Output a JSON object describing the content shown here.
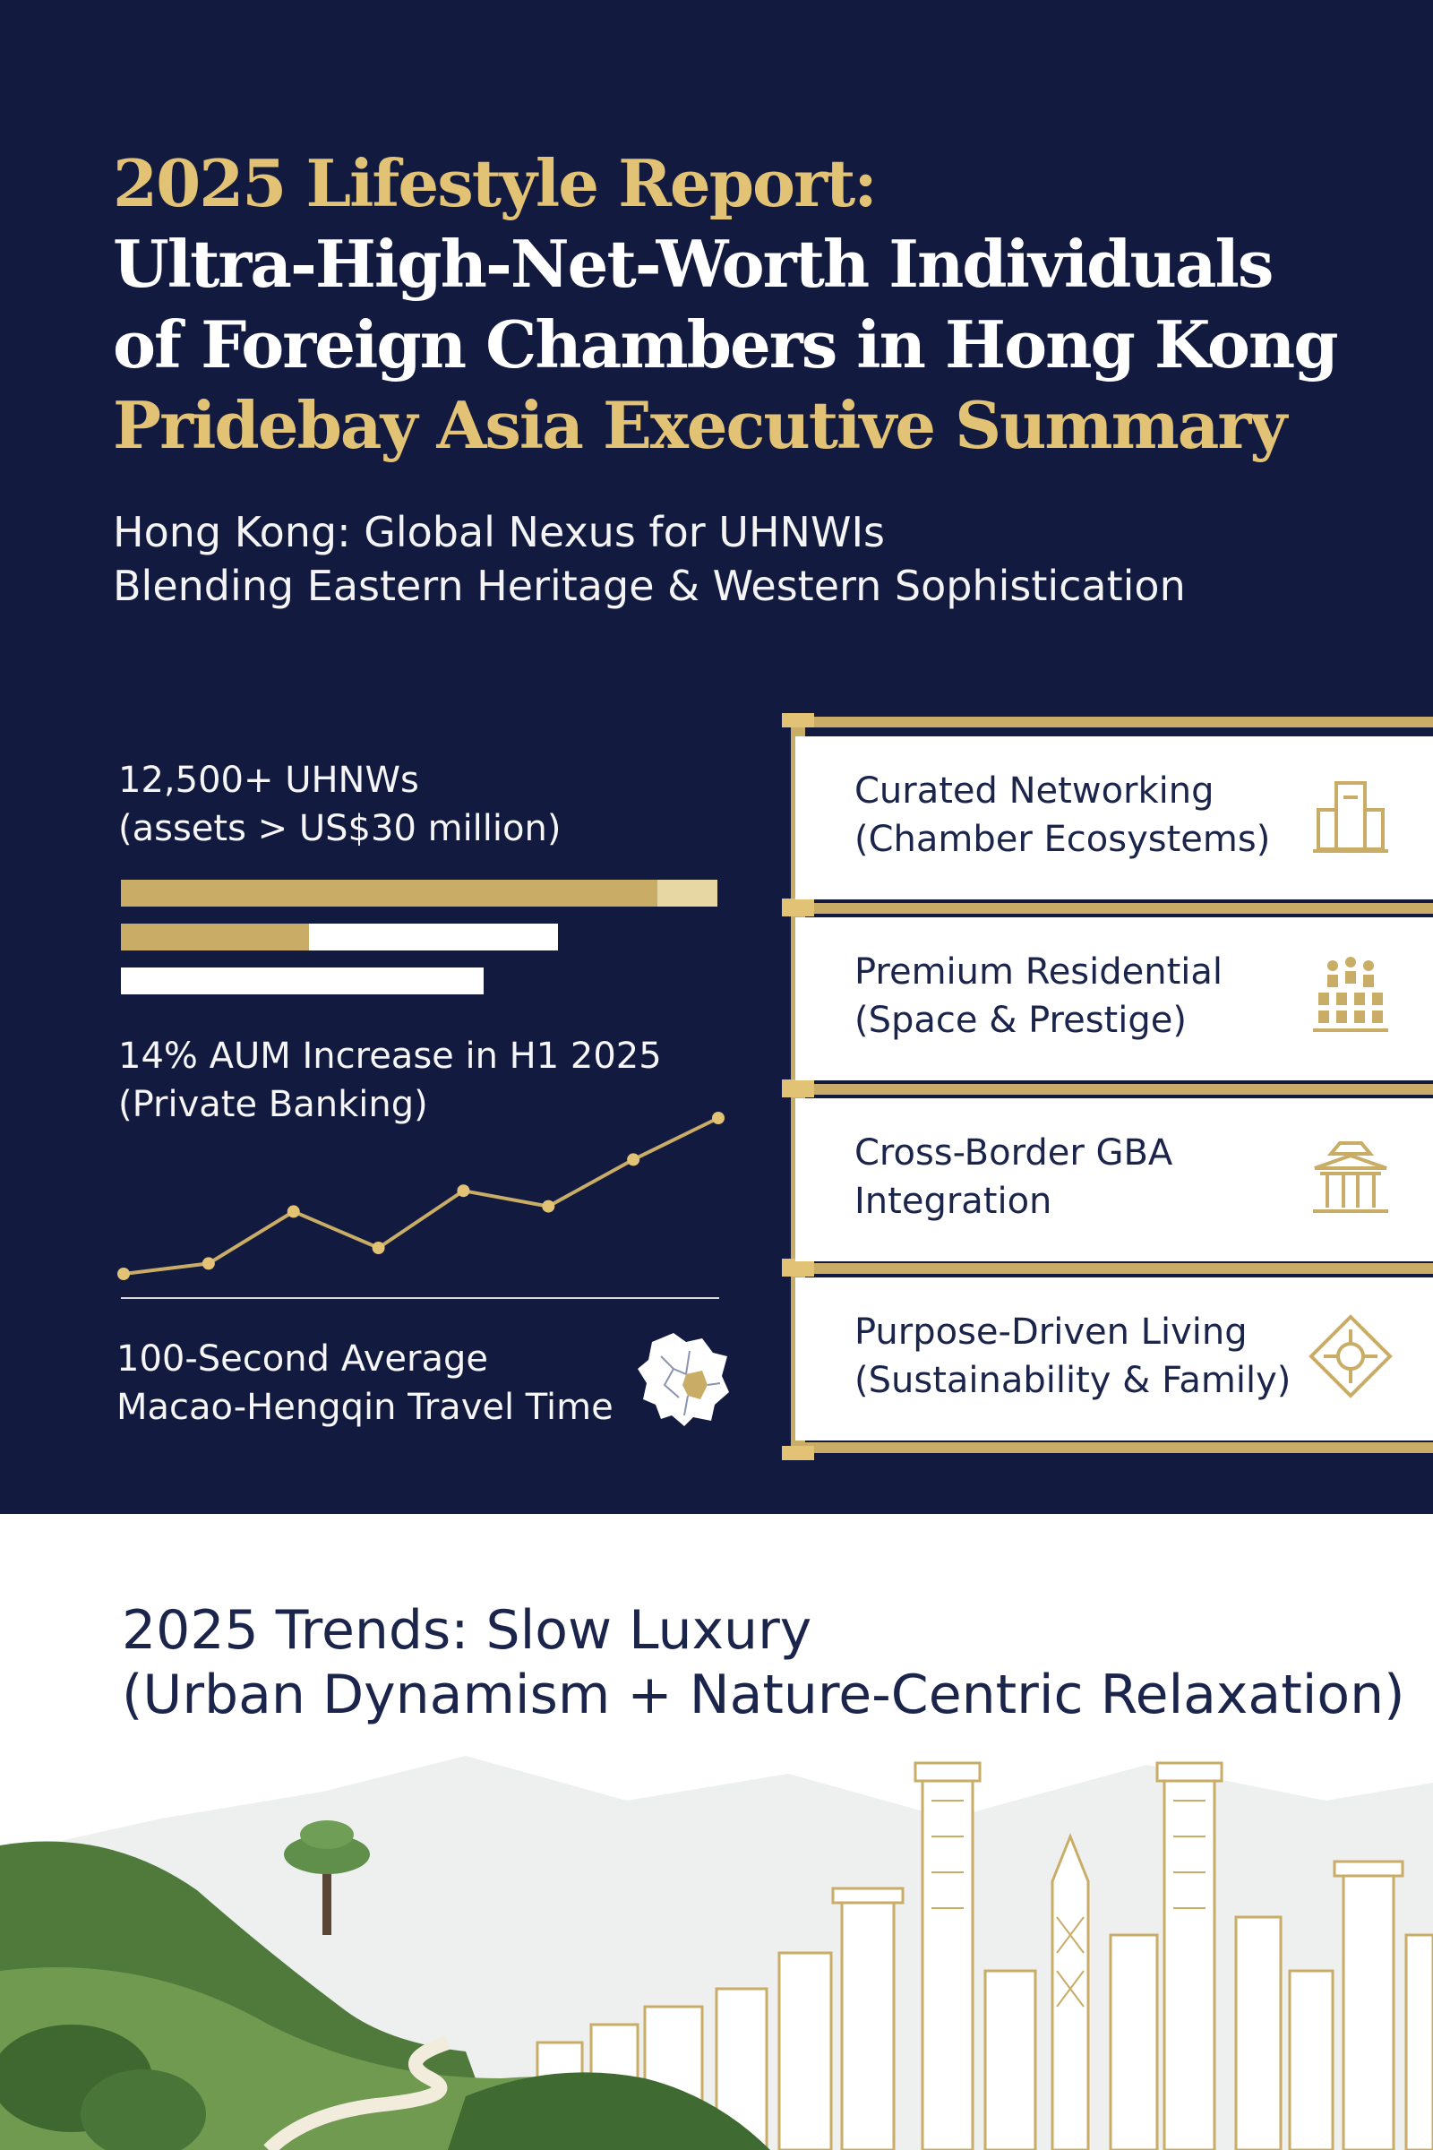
{
  "header": {
    "title_line1": "2025 Lifestyle Report:",
    "title_line2": "Ultra-High-Net-Worth Individuals",
    "title_line3": "of Foreign Chambers in Hong Kong",
    "title_line4": "Pridebay Asia Executive Summary",
    "subtitle_line1": "Hong Kong: Global Nexus for UHNWIs",
    "subtitle_line2": "Blending Eastern Heritage & Western Sophistication"
  },
  "stats": {
    "uhnw_line1": "12,500+ UHNWs",
    "uhnw_line2": "(assets > US$30 million)",
    "bar_fill_fractions": [
      0.9,
      0.43,
      0
    ],
    "aum_line1": "14% AUM Increase in H1 2025",
    "aum_line2": "(Private Banking)",
    "aum_trend": [
      2,
      4,
      14,
      7,
      18,
      15,
      24,
      32
    ],
    "travel_line1": "100-Second Average",
    "travel_line2": "Macao-Hengqin Travel Time"
  },
  "pillars": [
    {
      "line1": "Curated Networking",
      "line2": "(Chamber Ecosystems)",
      "icon": "building-icon"
    },
    {
      "line1": "Premium Residential",
      "line2": "(Space & Prestige)",
      "icon": "residential-icon"
    },
    {
      "line1": "Cross-Border GBA",
      "line2": "Integration",
      "icon": "pavilion-icon"
    },
    {
      "line1": "Purpose-Driven Living",
      "line2": "(Sustainability & Family)",
      "icon": "diamond-emblem-icon"
    }
  ],
  "trends": {
    "line1": "2025 Trends: Slow Luxury",
    "line2": "(Urban Dynamism + Nature-Centric Relaxation)"
  },
  "colors": {
    "navy": "#121a3f",
    "gold": "#e2c274",
    "bar_gold": "#c9ad67",
    "ink": "#1b244a",
    "forest": "#4f7a3c"
  }
}
